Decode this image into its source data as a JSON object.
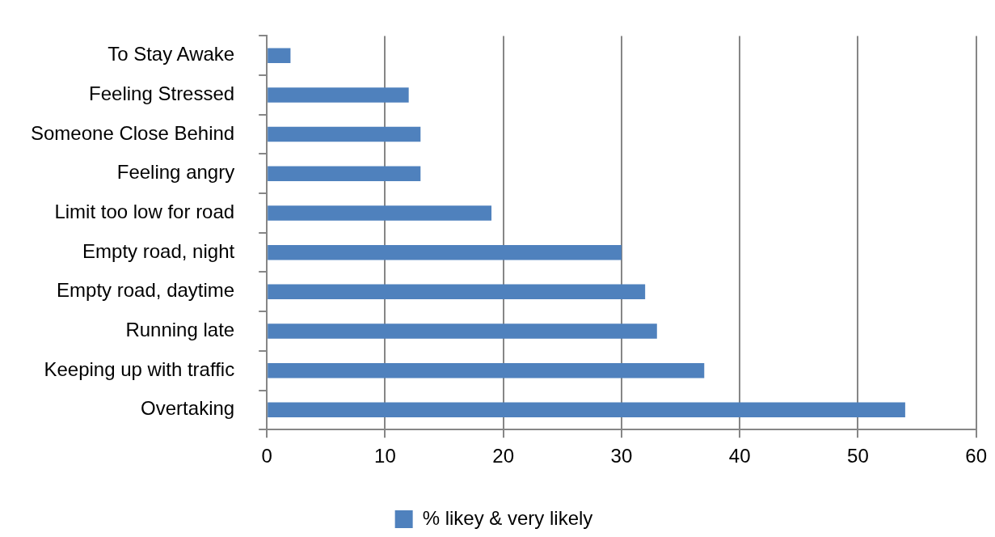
{
  "chart_data": {
    "type": "bar",
    "orientation": "horizontal",
    "categories": [
      "To Stay Awake",
      "Feeling Stressed",
      "Someone Close Behind",
      "Feeling angry",
      "Limit too low for road",
      "Empty road, night",
      "Empty road, daytime",
      "Running late",
      "Keeping up with traffic",
      "Overtaking"
    ],
    "series": [
      {
        "name": "% likey & very likely",
        "color": "#4f81bd",
        "values": [
          2,
          12,
          13,
          13,
          19,
          30,
          32,
          33,
          37,
          54
        ]
      }
    ],
    "xlim": [
      0,
      60
    ],
    "xticks": [
      0,
      10,
      20,
      30,
      40,
      50,
      60
    ],
    "grid": "x",
    "legend": "bottom"
  }
}
